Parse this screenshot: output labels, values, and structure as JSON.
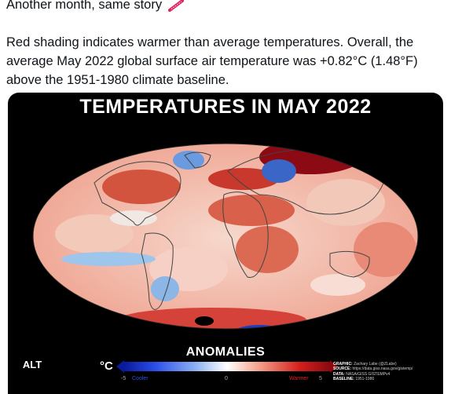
{
  "tweet": {
    "line1": "Another month, same story",
    "line2": "Red shading indicates warmer than average temperatures. Overall, the",
    "line3": "average May 2022 global surface air temperature was +0.82°C (1.48°F)",
    "line4": "above the 1951-1980 climate baseline.",
    "emoji_icon": "thermometer-icon"
  },
  "media": {
    "title": "TEMPERATURES IN MAY 2022",
    "legend_title": "ANOMALIES",
    "unit": "°C",
    "ticks": {
      "min": "-5",
      "cooler": "Cooler",
      "mid": "0",
      "warmer": "Warmer",
      "max": "5"
    },
    "alt_badge": "ALT",
    "credits": {
      "graphic_label": "GRAPHIC:",
      "graphic_value": "Zachary Labe (@ZLabe)",
      "source_label": "SOURCE:",
      "source_value": "https://data.giss.nasa.gov/gistemp/",
      "data_label": "DATA:",
      "data_value": "NASA/GISS GISTEMPv4",
      "baseline_label": "BASELINE:",
      "baseline_value": "1951-1980"
    },
    "colors": {
      "cool": "#0a2fe0",
      "warm": "#d01010",
      "neutral": "#ffffff",
      "background": "#000000"
    }
  }
}
